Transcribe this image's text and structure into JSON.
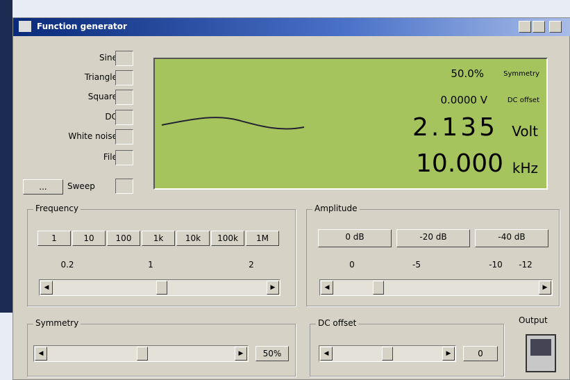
{
  "window": {
    "title": "Function generator"
  },
  "waveforms": [
    "Sine",
    "Triangle",
    "Square",
    "DC",
    "White noise",
    "File"
  ],
  "sweep": {
    "button": "...",
    "label": "Sweep"
  },
  "display": {
    "symmetry_value": "50.0%",
    "symmetry_label": "Symmetry",
    "offset_value": "0.0000 V",
    "offset_label": "DC offset",
    "amplitude_value": "2.135",
    "amplitude_unit": "Volt",
    "frequency_value": "10.000",
    "frequency_unit": "kHz"
  },
  "frequency": {
    "title": "Frequency",
    "buttons": [
      "1",
      "10",
      "100",
      "1k",
      "10k",
      "100k",
      "1M"
    ],
    "scale": [
      "0.2",
      "1",
      "2"
    ]
  },
  "amplitude": {
    "title": "Amplitude",
    "buttons": [
      "0 dB",
      "-20 dB",
      "-40 dB"
    ],
    "scale": [
      "0",
      "-5",
      "-10",
      "-12"
    ]
  },
  "symmetry": {
    "title": "Symmetry",
    "button": "50%"
  },
  "dc_offset": {
    "title": "DC offset",
    "button": "0"
  },
  "output": {
    "label": "Output"
  }
}
